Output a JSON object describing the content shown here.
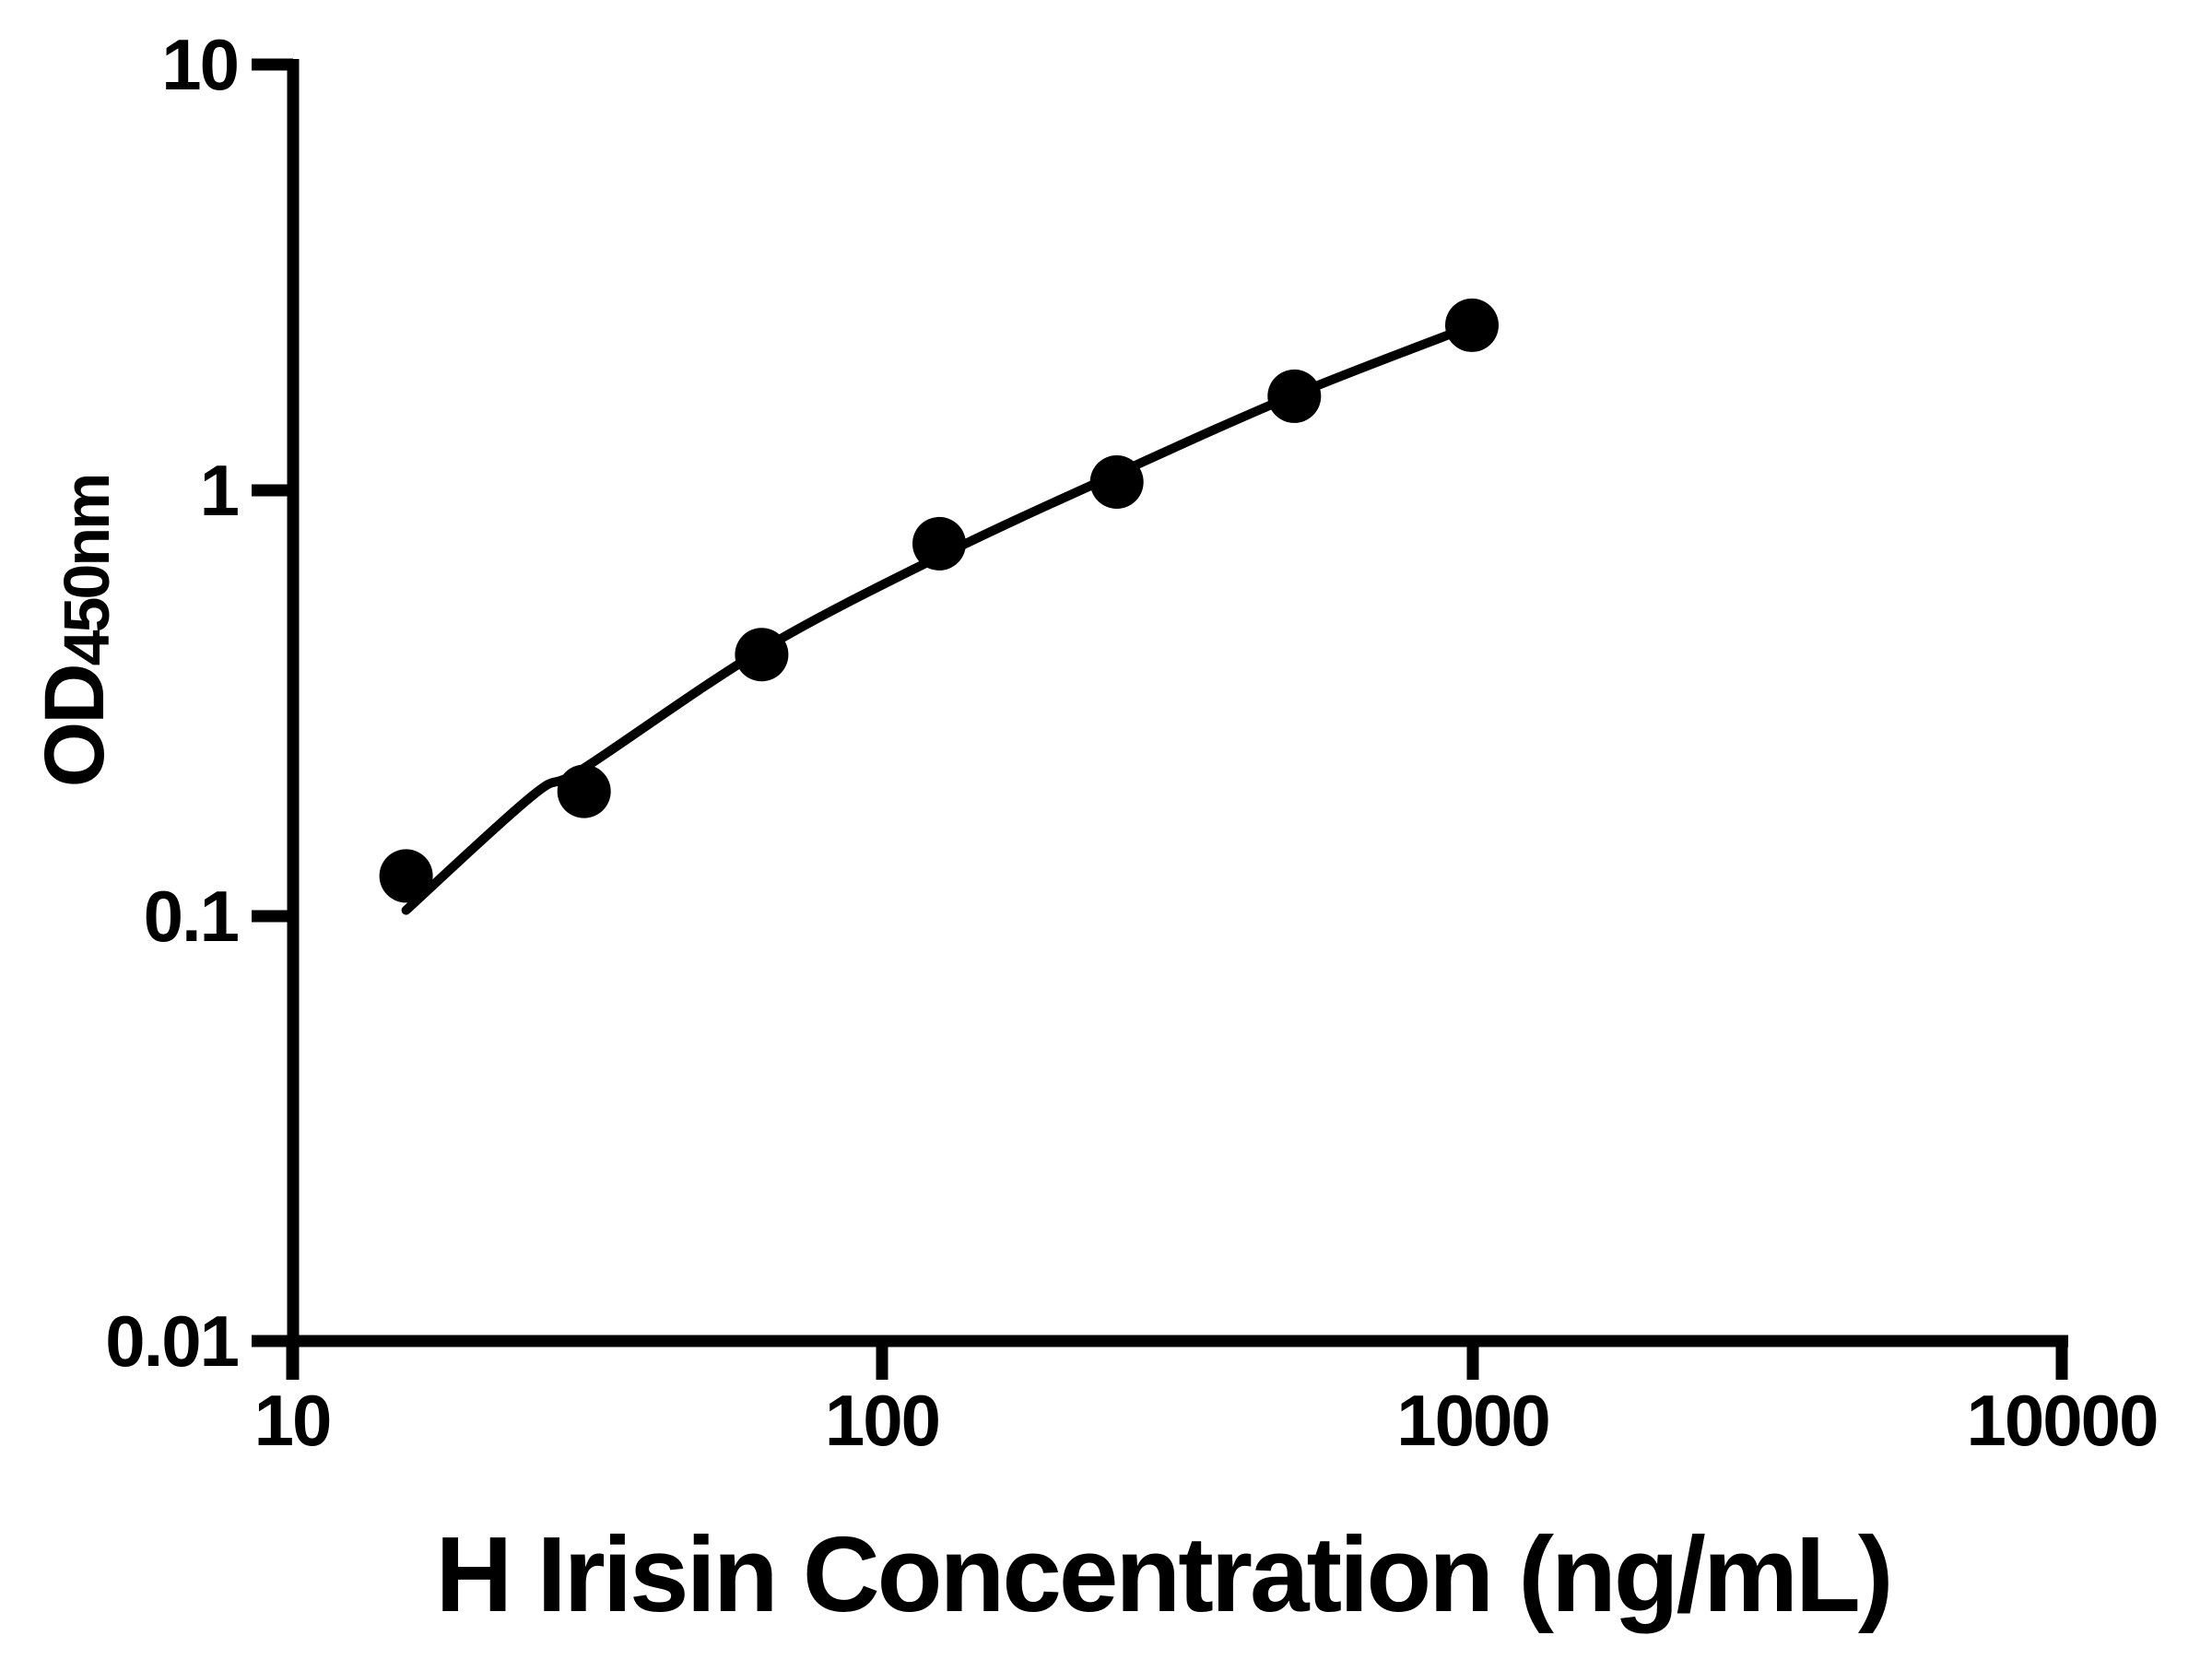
{
  "figure": {
    "background": "#ffffff",
    "ink_color": "#000000"
  },
  "chart_data": {
    "type": "scatter",
    "title": "",
    "xlabel": "H Irisin Concentration (ng/mL)",
    "ylabel_main": "OD",
    "ylabel_sub": "450nm",
    "x_scale": "log",
    "y_scale": "log",
    "xlim": [
      10,
      10000
    ],
    "ylim": [
      0.01,
      10
    ],
    "grid": false,
    "legend": null,
    "x_ticks": [
      {
        "value": 10,
        "label": "10"
      },
      {
        "value": 100,
        "label": "100"
      },
      {
        "value": 1000,
        "label": "1000"
      },
      {
        "value": 10000,
        "label": "10000"
      }
    ],
    "y_ticks": [
      {
        "value": 10,
        "label": "10"
      },
      {
        "value": 1,
        "label": "1"
      },
      {
        "value": 0.1,
        "label": "0.1"
      },
      {
        "value": 0.01,
        "label": "0.01"
      }
    ],
    "series": [
      {
        "name": "standard-curve-points",
        "marker": "circle",
        "marker_color": "#000000",
        "marker_radius_px": 29,
        "points": [
          {
            "x": 15.6,
            "y": 0.124
          },
          {
            "x": 31.25,
            "y": 0.196
          },
          {
            "x": 62.5,
            "y": 0.411
          },
          {
            "x": 125,
            "y": 0.749
          },
          {
            "x": 250,
            "y": 1.046
          },
          {
            "x": 500,
            "y": 1.664
          },
          {
            "x": 1000,
            "y": 2.444
          }
        ]
      }
    ],
    "fit_curve": {
      "name": "fitted-trend-line",
      "color": "#000000",
      "points": [
        {
          "x": 15.6,
          "y": 0.103
        },
        {
          "x": 25.6,
          "y": 0.192
        },
        {
          "x": 31.2,
          "y": 0.222
        },
        {
          "x": 62.6,
          "y": 0.422
        },
        {
          "x": 125.9,
          "y": 0.702
        },
        {
          "x": 252,
          "y": 1.099
        },
        {
          "x": 503,
          "y": 1.681
        },
        {
          "x": 1007,
          "y": 2.444
        }
      ]
    }
  }
}
